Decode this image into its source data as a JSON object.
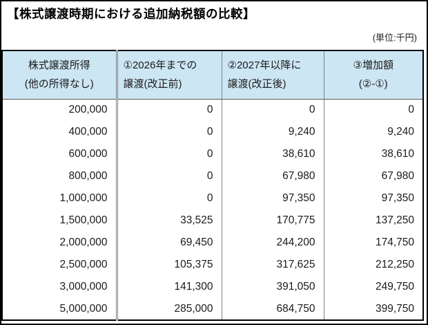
{
  "page": {
    "title": "【株式譲渡時期における追加納税額の比較】",
    "unit_label": "(単位:千円)"
  },
  "colors": {
    "header_bg": "#cde6f4",
    "border_gray": "#808080",
    "frame_black": "#000000",
    "text": "#1a1a1a"
  },
  "table": {
    "headers": [
      {
        "line1": "株式譲渡所得",
        "line2": "(他の所得なし)"
      },
      {
        "line1": "①2026年までの",
        "line2": "譲渡(改正前)"
      },
      {
        "line1": "②2027年以降に",
        "line2": "譲渡(改正後)"
      },
      {
        "line1": "③増加額",
        "line2": "(②-①)"
      }
    ],
    "rows": [
      [
        "200,000",
        "0",
        "0",
        "0"
      ],
      [
        "400,000",
        "0",
        "9,240",
        "9,240"
      ],
      [
        "600,000",
        "0",
        "38,610",
        "38,610"
      ],
      [
        "800,000",
        "0",
        "67,980",
        "67,980"
      ],
      [
        "1,000,000",
        "0",
        "97,350",
        "97,350"
      ],
      [
        "1,500,000",
        "33,525",
        "170,775",
        "137,250"
      ],
      [
        "2,000,000",
        "69,450",
        "244,200",
        "174,750"
      ],
      [
        "2,500,000",
        "105,375",
        "317,625",
        "212,250"
      ],
      [
        "3,000,000",
        "141,300",
        "391,050",
        "249,750"
      ],
      [
        "5,000,000",
        "285,000",
        "684,750",
        "399,750"
      ]
    ]
  }
}
